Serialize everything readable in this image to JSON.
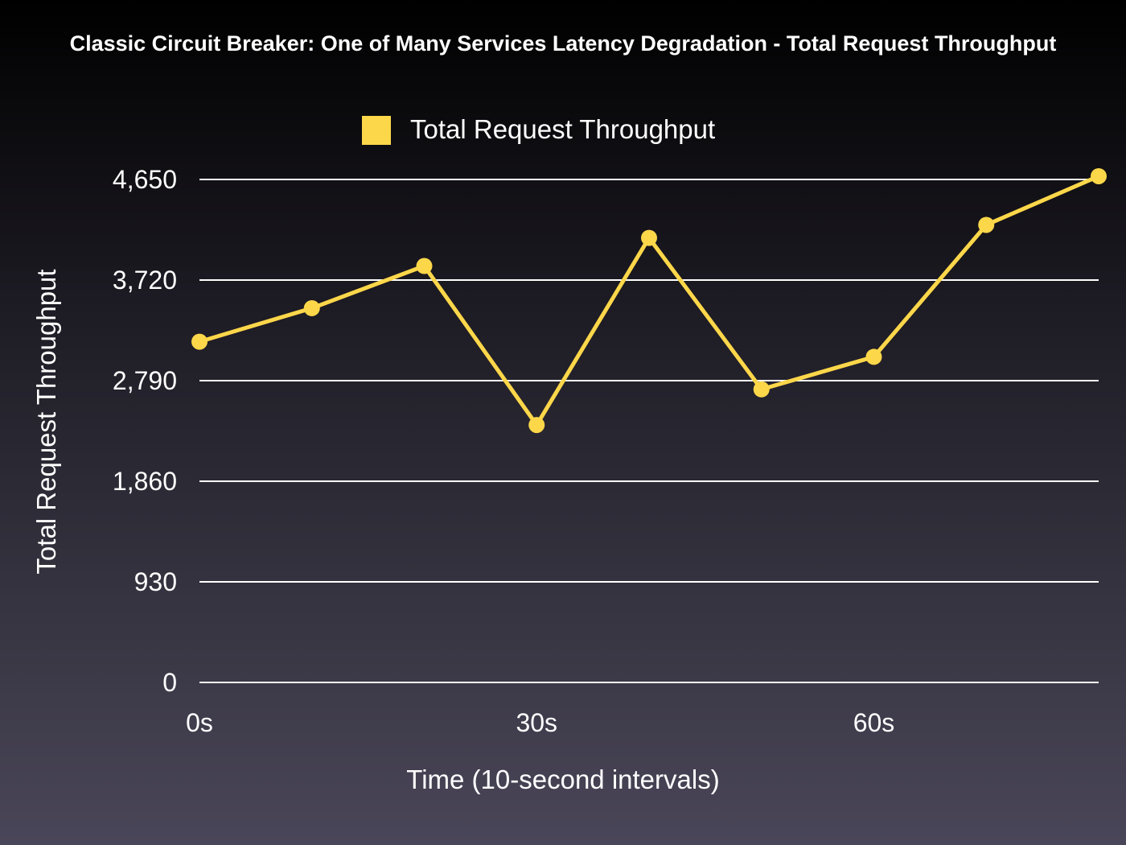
{
  "chart_data": {
    "type": "line",
    "title": "Classic Circuit Breaker: One of Many Services Latency Degradation - Total Request Throughput",
    "xlabel": "Time (10-second intervals)",
    "ylabel": "Total Request Throughput",
    "x": [
      0,
      10,
      20,
      30,
      40,
      50,
      60,
      70,
      80
    ],
    "x_tick_values": [
      0,
      30,
      60
    ],
    "x_tick_labels": [
      "0s",
      "30s",
      "60s"
    ],
    "xlim": [
      0,
      80
    ],
    "ylim": [
      0,
      4650
    ],
    "y_ticks": [
      0,
      930,
      1860,
      2790,
      3720,
      4650
    ],
    "y_tick_labels": [
      "0",
      "930",
      "1,860",
      "2,790",
      "3,720",
      "4,650"
    ],
    "grid": true,
    "legend_position": "top-center",
    "series": [
      {
        "name": "Total Request Throughput",
        "color": "#fdd74a",
        "values": [
          3150,
          3460,
          3850,
          2380,
          4110,
          2710,
          3010,
          4230,
          4680
        ]
      }
    ]
  }
}
